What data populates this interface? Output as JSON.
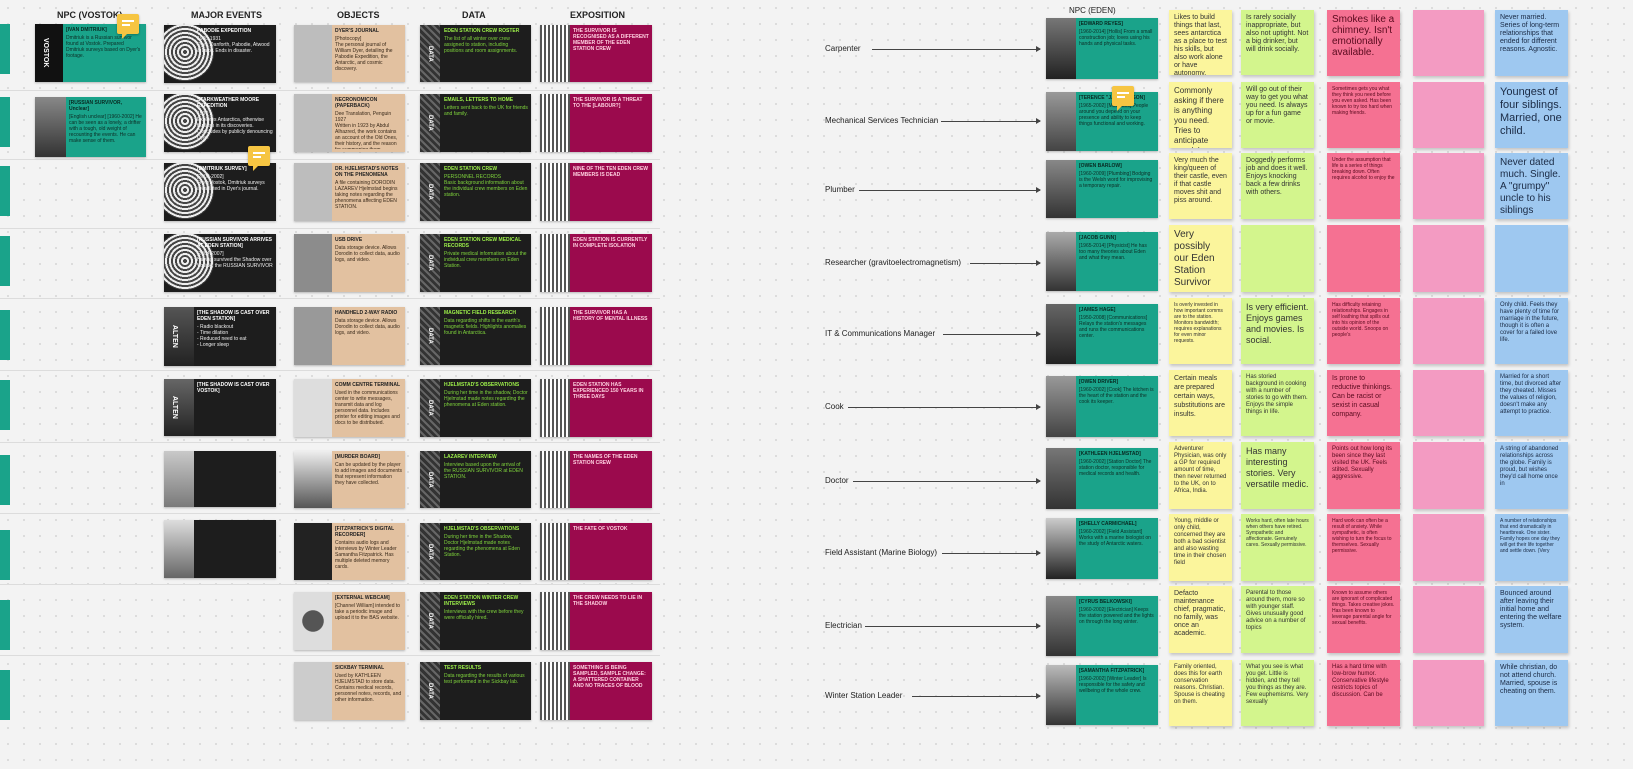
{
  "headers": {
    "npc_vostok": "NPC (VOSTOK)",
    "major_events": "MAJOR EVENTS",
    "objects": "OBJECTS",
    "data": "DATA",
    "exposition": "EXPOSITION",
    "npc_eden": "NPC (EDEN)"
  },
  "colors": {
    "teal": "#1aa38a",
    "black": "#1d1d1d",
    "tan": "#e2c1a0",
    "crimson": "#9b0a4d",
    "yellow": "#fbf59c",
    "green": "#d3f58d",
    "red": "#f57192",
    "pink": "#f39bc2",
    "blue": "#9ec8f0",
    "comment": "#f6c542"
  },
  "vostok": [
    {
      "title": "[IVAN DMITRIUK]",
      "text": "Dmitriuk is a Russian survivor found at Vostok. Prepared Dmitriuk surveys based on Dyer's footage.",
      "vertical": "VOSTOK"
    },
    {
      "title": "[RUSSIAN SURVIVOR, Unclear]",
      "text": "[English unclear] [1960-2002] He can be seen as a lonely, a drifter with a tough, old weight of recounting the events. He can make sense of them."
    }
  ],
  "events": [
    {
      "title": "PABODIE EXPEDITION",
      "sub": "1930-1931",
      "text": "Dyer, Danforth, Pabodie, Atwood & Lake. Ends in disaster."
    },
    {
      "title": "STARKWEATHER MOORE EXPEDITION",
      "sub": "1934",
      "text": "Explores Antarctica, otherwise fruitless in its discoveries. Concludes by publicly denouncing Dyer."
    },
    {
      "title": "[DMITRIUK SURVEY]",
      "sub": "[2000-2002]",
      "text": "From Vostok, Dmitriuk surveys area listed in Dyer's journal."
    },
    {
      "title": "[RUSSIAN SURVIVOR ARRIVES AT EDEN STATION]",
      "sub": "[2004-2007]",
      "text": "Having survived the Shadow over Vostok, the RUSSIAN SURVIVOR"
    },
    {
      "title": "[THE SHADOW IS CAST OVER EDEN STATION]",
      "text": "- Radio blackout\n- Time dilation\n- Reduced need to eat\n- Longer sleep",
      "vertical": "ALTEN"
    },
    {
      "title": "[THE SHADOW IS CAST OVER VOSTOK]",
      "text": "",
      "vertical": "ALTEN"
    },
    {
      "title": "",
      "text": ""
    },
    {
      "title": "",
      "text": ""
    }
  ],
  "objects": [
    {
      "title": "DYER'S JOURNAL",
      "sub": "[Photocopy]",
      "text": "The personal journal of William Dyer, detailing the Pabodie Expedition, the Antarctic, and cosmic discovery."
    },
    {
      "title": "NECRONOMICON (PAPERBACK)",
      "sub": "Dee Translation, Penguin 1927",
      "text": "Written in 1923 by Abdul Alhazred, the work contains an account of the Old Ones, their history, and the reason for summoning them."
    },
    {
      "title": "DR. HJELMSTAD'S NOTES ON THE PHENOMENA",
      "text": "A file containing DORODIN LAZAREV Hjelmstad begins taking notes regarding the phenomena affecting EDEN STATION."
    },
    {
      "title": "USB DRIVE",
      "text": "Data storage device. Allows Dorodin to collect data, audio logs, and video."
    },
    {
      "title": "HANDHELD 2-WAY RADIO",
      "text": "Data storage device. Allows Dorodin to collect data, audio logs, and video."
    },
    {
      "title": "COMM CENTRE TERMINAL",
      "text": "Used in the communications center to write messages, transmit data and log personnel data. Includes printer for editing images and docs to be distributed."
    },
    {
      "title": "[MURDER BOARD]",
      "text": "Can be updated by the player to add images and documents that represent information they have collected."
    },
    {
      "title": "[FITZPATRICK'S DIGITAL RECORDER]",
      "text": "Contains audio logs and interviews by Winter Leader Samantha Fitzpatrick. Has multiple deleted memory cards."
    },
    {
      "title": "[EXTERNAL WEBCAM]",
      "text": "[Channel William] intended to take a periodic image and upload it to the BAS website."
    },
    {
      "title": "SICKBAY TERMINAL",
      "text": "Used by KATHLEEN HJELMSTAD to store data. Contains medical records, personnel notes, records, and other information."
    }
  ],
  "data": [
    {
      "tag": "DATA",
      "title": "EDEN STATION CREW ROSTER",
      "text": "The list of all winter over crew assigned to station, including positions and room assignments."
    },
    {
      "tag": "DATA",
      "title": "EMAILS, LETTERS TO HOME",
      "text": "Letters sent back to the UK for friends and family."
    },
    {
      "tag": "DATA",
      "title": "EDEN STATION CREW",
      "sub": "PERSONNEL RECORDS",
      "text": "Basic background information about the individual crew members on Eden station."
    },
    {
      "tag": "DATA",
      "title": "EDEN STATION CREW MEDICAL RECORDS",
      "text": "Private medical information about the individual crew members on Eden Station."
    },
    {
      "tag": "DATA",
      "title": "MAGNETIC FIELD RESEARCH",
      "text": "Data regarding shifts in the earth's magnetic fields. Highlights anomalies found in Antarctica."
    },
    {
      "tag": "DATA",
      "title": "HJELMSTAD'S OBSERVATIONS",
      "text": "During her time in the shadow, Doctor Hjelmstad made notes regarding the phenomena at Eden station."
    },
    {
      "tag": "DATA",
      "title": "LAZAREV INTERVIEW",
      "text": "Interview based upon the arrival of the RUSSIAN SURVIVOR at EDEN STATION."
    },
    {
      "tag": "DATA",
      "title": "HJELMSTAD'S OBSERVATIONS",
      "text": "During her time in the Shadow, Doctor Hjelmstad made notes regarding the phenomena at Eden Station."
    },
    {
      "tag": "DATA",
      "title": "EDEN STATION WINTER CREW INTERVIEWS",
      "text": "Interviews with the crew before they were officially hired."
    },
    {
      "tag": "DATA",
      "title": "TEST RESULTS",
      "text": "Data regarding the results of various test performed in the Sickbay lab."
    }
  ],
  "exposition": [
    {
      "text": "THE SURVIVOR IS RECOGNISED AS A DIFFERENT MEMBER OF THE EDEN STATION CREW"
    },
    {
      "text": "THE SURVIVOR IS A THREAT TO THE [LABOUR?]"
    },
    {
      "text": "NINE OF THE TEN EDEN CREW MEMBERS IS DEAD"
    },
    {
      "text": "EDEN STATION IS CURRENTLY IN COMPLETE ISOLATION"
    },
    {
      "text": "THE SURVIVOR HAS A HISTORY OF MENTAL ILLNESS"
    },
    {
      "text": "EDEN STATION HAS EXPERIENCED 150 YEARS IN THREE DAYS"
    },
    {
      "text": "THE NAMES OF THE EDEN STATION CREW"
    },
    {
      "text": "THE FATE OF VOSTOK"
    },
    {
      "text": "THE CREW NEEDS TO LIE IN THE SHADOW"
    },
    {
      "text": "SOMETHING IS BEING SAMPLED, SAMPLE CHANGE: A SHATTERED CONTAINER AND NO TRACES OF BLOOD"
    }
  ],
  "eden": [
    {
      "role": "Carpenter",
      "npc_title": "[EDWARD REYES]",
      "npc_text": "[1960-2014] [Hollis] From a small construction job; loves using his hands and physical tasks.",
      "yellow": "Likes to build things that last, sees antarctica as a place to test his skills, but also work alone or have autonomy.",
      "green": "Is rarely socially inappropriate, but also not uptight. Not a big drinker, but will drink socially.",
      "red": "Smokes like a chimney. Isn't emotionally available.",
      "blue": "Never married. Series of long-term relationships that ended for different reasons. Agnostic."
    },
    {
      "role": "Mechanical Services Technician",
      "npc_title": "[TERENCE \"JJ\" THOMSON]",
      "npc_text": "[1965-2002] [Mechanic] People around you depend on your presence and ability to keep things functional and working.",
      "yellow": "Commonly asking if there is anything you need. Tries to anticipate people's needs.",
      "green": "Will go out of their way to get you what you need. Is always up for a fun game or movie.",
      "red": "Sometimes gets you what they think you need before you even asked. Has been known to try too hard when making friends.",
      "blue": "Youngest of four siblings. Married, one child."
    },
    {
      "role": "Plumber",
      "npc_title": "[OWEN BARLOW]",
      "npc_text": "[1960-2009] [Plumbing] Bodging is the Welsh word for improvising a temporary repair.",
      "yellow": "Very much the king/queen of their castle, even if that castle moves shit and piss around.",
      "green": "Doggedly performs job and does it well. Enjoys knocking back a few drinks with others.",
      "red": "Under the assumption that life is a series of things breaking down. Often requires alcohol to enjoy the",
      "blue": "Never dated much. Single. A \"grumpy\" uncle to his siblings"
    },
    {
      "role": "Researcher (gravitoelectromagnetism)",
      "npc_title": "[JACOB GUNN]",
      "npc_text": "[1965-2014] [Physicist] He has too many theories about Eden and what they mean.",
      "yellow": "Very possibly our Eden Station Survivor",
      "green": "",
      "red": "",
      "blue": ""
    },
    {
      "role": "IT & Communications Manager",
      "npc_title": "[JAMES HAGE]",
      "npc_text": "[1950-2008] [Communications] Relays the station's messages and runs the communications center.",
      "yellow": "Is overly invested in how important comms are to the station. Monitors bandwidth; requires explanations for even minor requests.",
      "green": "Is very efficient. Enjoys games and movies. Is social.",
      "red": "Has difficulty retaining relationships. Engages in self loathing that spills out into his opinion of the outside world. Snoops on people's",
      "blue": "Only child. Feels they have plenty of time for marriage in the future, though it is often a cover for a failed love life."
    },
    {
      "role": "Cook",
      "npc_title": "[OWEN DRIVER]",
      "npc_text": "[1960-2002] [Cook] The kitchen is the heart of the station and the cook its keeper.",
      "yellow": "Certain meals are prepared certain ways, substitutions are insults.",
      "green": "Has storied background in cooking with a number of stories to go with them. Enjoys the simple things in life.",
      "red": "Is prone to reductive thinkings. Can be racist or sexist in casual company.",
      "blue": "Married for a short time, but divorced after they cheated. Misses the values of religion, doesn't make any attempt to practice."
    },
    {
      "role": "Doctor",
      "npc_title": "[KATHLEEN HJELMSTAD]",
      "npc_text": "[1960-2002] [Station Doctor] The station doctor, responsible for medical records and health.",
      "yellow": "Adventurer Physician, was only a GP for required amount of time, then never returned to the UK, on to Africa, India.",
      "green": "Has many interesting stories. Very versatile medic.",
      "red": "Points out how long its been since they last visited the UK. Feels stilted. Sexually aggressive.",
      "blue": "A string of abandoned relationships across the globe. Family is proud, but wishes they'd call home once in"
    },
    {
      "role": "Field Assistant (Marine Biology)",
      "npc_title": "[SHELLY CARMICHAEL]",
      "npc_text": "[1960-2002] [Field Assistant] Works with a marine biologist on the study of Antarctic waters.",
      "yellow": "Young, middle or only child, concerned they are both a bad scientist and also wasting time in their chosen field",
      "green": "Works hard, often late hours when others have retired. Sympathetic and affectionate. Genuinely cares. Sexually permissive.",
      "red": "Hard work can often be a result of anxiety. While sympathetic, is often wishing to turn the focus to themselves. Sexually permissive.",
      "blue": "A number of relationships that end dramatically in heartbreak. One sister. Family hopes one day they will get their life together and settle down. (Very"
    },
    {
      "role": "Electrician",
      "npc_title": "[CYRUS BELKOWSKI]",
      "npc_text": "[1960-2002] [Electrician] Keeps the station powered and the lights on through the long winter.",
      "yellow": "Defacto maintenance chief, pragmatic, no family, was once an academic.",
      "green": "Parental to those around them, more so with younger staff. Gives unusually good advice on a number of topics",
      "red": "Known to assume others are ignorant of complicated things. Takes creative jokes. Has been known to leverage parental angle for sexual benefits.",
      "blue": "Bounced around after leaving their initial home and entering the welfare system."
    },
    {
      "role": "Winter Station Leader",
      "npc_title": "[SAMANTHA FITZPATRICK]",
      "npc_text": "[1960-2002] [Winter Leader] Is responsible for the safety and wellbeing of the whole crew.",
      "yellow": "Family oriented, does this for earth conservation reasons. Christian. Spouse is cheating on them.",
      "green": "What you see is what you get. Little is hidden, and they tell you things as they are. Few euphemisms. Very sexually",
      "red": "Has a hard time with low-brow humor. Conservative lifestyle restricts topics of discussion. Can be",
      "blue": "While christian, do not attend church. Married, spouse is cheating on them."
    }
  ]
}
